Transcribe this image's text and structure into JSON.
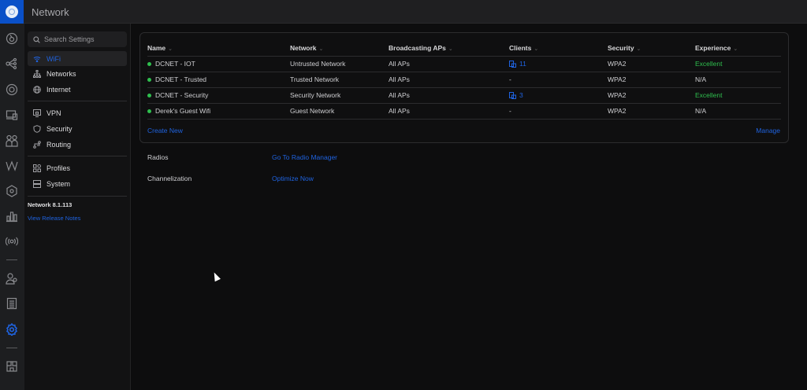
{
  "app": {
    "title": "Network"
  },
  "rail": {
    "icons": [
      "dashboard-icon",
      "topology-icon",
      "devices-icon",
      "client-devices-icon",
      "clients-icon",
      "insights-icon",
      "integrations-icon",
      "statistics-icon",
      "radio-icon",
      "admins-icon",
      "logs-icon",
      "settings-icon",
      "innerspace-icon"
    ],
    "active": "settings-icon"
  },
  "sidebar": {
    "search_placeholder": "Search Settings",
    "items": [
      {
        "label": "WiFi",
        "icon": "wifi-icon",
        "active": true
      },
      {
        "label": "Networks",
        "icon": "networks-icon"
      },
      {
        "label": "Internet",
        "icon": "globe-icon"
      },
      {
        "label": "VPN",
        "icon": "vpn-icon"
      },
      {
        "label": "Security",
        "icon": "shield-icon"
      },
      {
        "label": "Routing",
        "icon": "routing-icon"
      },
      {
        "label": "Profiles",
        "icon": "profiles-icon"
      },
      {
        "label": "System",
        "icon": "system-icon"
      }
    ],
    "version": "Network 8.1.113",
    "release_notes": "View Release Notes"
  },
  "wifi_table": {
    "columns": [
      "Name",
      "Network",
      "Broadcasting APs",
      "Clients",
      "Security",
      "Experience"
    ],
    "rows": [
      {
        "name": "DCNET - IOT",
        "network": "Untrusted Network",
        "aps": "All APs",
        "clients": "11",
        "security": "WPA2",
        "experience": "Excellent"
      },
      {
        "name": "DCNET - Trusted",
        "network": "Trusted Network",
        "aps": "All APs",
        "clients": "-",
        "security": "WPA2",
        "experience": "N/A"
      },
      {
        "name": "DCNET - Security",
        "network": "Security Network",
        "aps": "All APs",
        "clients": "3",
        "security": "WPA2",
        "experience": "Excellent"
      },
      {
        "name": "Derek's Guest Wifi",
        "network": "Guest Network",
        "aps": "All APs",
        "clients": "-",
        "security": "WPA2",
        "experience": "N/A"
      }
    ],
    "create_new": "Create New",
    "manage": "Manage"
  },
  "radios": {
    "label": "Radios",
    "link": "Go To Radio Manager"
  },
  "channelization": {
    "label": "Channelization",
    "link": "Optimize Now"
  },
  "colors": {
    "accent": "#1f63e0",
    "success": "#2fbf4e",
    "status_dot": "#2fbf4e"
  }
}
